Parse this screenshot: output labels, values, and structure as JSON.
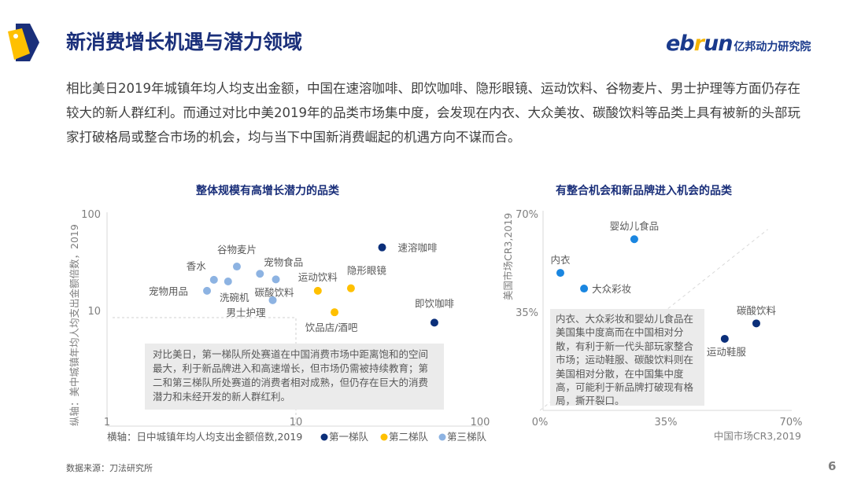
{
  "header": {
    "title": "新消费增长机遇与潜力领域",
    "logo_latin": "ebrun",
    "logo_cn": "亿邦动力研究院"
  },
  "intro": "相比美日2019年城镇年均人均支出金额，中国在速溶咖啡、即饮咖啡、隐形眼镜、运动饮料、谷物麦片、男士护理等方面仍存在较大的新人群红利。而通过对比中美2019年的品类市场集中度，会发现在内衣、大众美妆、碳酸饮料等品类上具有被新的头部玩家打破格局或整合市场的机会，均与当下中国新消费崛起的机遇方向不谋而合。",
  "footer": {
    "source": "数据来源：刀法研究所",
    "page": "6"
  },
  "colors": {
    "tier1": "#0b2f7a",
    "tier2": "#ffc000",
    "tier3": "#8db3e2",
    "c2light": "#1a86e0",
    "c2dark": "#0b2f7a"
  },
  "chart_data": [
    {
      "type": "scatter",
      "title": "整体规模有高增长潜力的品类",
      "xlabel": "横轴：日中城镇年均人均支出金额倍数,2019",
      "ylabel": "纵轴：美中城镇年均人均支出金额倍数，2019",
      "xscale": "log",
      "yscale": "log",
      "xlim": [
        1,
        100
      ],
      "ylim": [
        1,
        100
      ],
      "xticks": [
        "1",
        "10",
        "100"
      ],
      "yticks": [
        "100",
        "10"
      ],
      "legend": [
        "第一梯队",
        "第二梯队",
        "第三梯队"
      ],
      "legend_placement": "bottom",
      "points": [
        {
          "label": "速溶咖啡",
          "x": 29,
          "y": 45,
          "tier": 1
        },
        {
          "label": "即饮咖啡",
          "x": 55,
          "y": 7.5,
          "tier": 1
        },
        {
          "label": "运动饮料",
          "x": 13.2,
          "y": 16,
          "tier": 2
        },
        {
          "label": "隐形眼镜",
          "x": 19.8,
          "y": 17,
          "tier": 2
        },
        {
          "label": "饮品店/酒吧",
          "x": 16.2,
          "y": 9.6,
          "tier": 2
        },
        {
          "label": "谷物麦片",
          "x": 4.9,
          "y": 28.5,
          "tier": 3
        },
        {
          "label": "香水",
          "x": 3.7,
          "y": 20.8,
          "tier": 3
        },
        {
          "label": "洗碗机",
          "x": 4.4,
          "y": 20,
          "tier": 3
        },
        {
          "label": "宠物食品",
          "x": 6.5,
          "y": 24,
          "tier": 3
        },
        {
          "label": "碳酸饮料",
          "x": 7.9,
          "y": 21,
          "tier": 3
        },
        {
          "label": "宠物用品",
          "x": 3.4,
          "y": 16,
          "tier": 3
        },
        {
          "label": "男士护理",
          "x": 7.6,
          "y": 12.8,
          "tier": 3
        }
      ],
      "annotation": "对比美日，第一梯队所处赛道在中国消费市场中距离饱和的空间最大，利于新品牌进入和高速增长，但市场仍需被持续教育；第二和第三梯队所处赛道的消费者相对成熟，但仍存在巨大的消费潜力和未经开发的新人群红利。"
    },
    {
      "type": "scatter",
      "title": "有整合机会和新品牌进入机会的品类",
      "xlabel": "中国市场CR3,2019",
      "ylabel": "美国市场CR3,2019",
      "xlim": [
        0,
        70
      ],
      "ylim": [
        0,
        70
      ],
      "xticks": [
        "0%",
        "35%",
        "70%"
      ],
      "yticks": [
        "70%",
        "35%"
      ],
      "points": [
        {
          "label": "婴幼儿食品",
          "x": 26.3,
          "y": 61,
          "group": "light"
        },
        {
          "label": "内衣",
          "x": 5.7,
          "y": 49,
          "group": "light"
        },
        {
          "label": "大众彩妆",
          "x": 12.3,
          "y": 43.4,
          "group": "light"
        },
        {
          "label": "碳酸饮料",
          "x": 60.3,
          "y": 31,
          "group": "dark"
        },
        {
          "label": "运动鞋服",
          "x": 51.5,
          "y": 25.5,
          "group": "dark"
        }
      ],
      "reference_line": "y=x",
      "annotation": "内衣、大众彩妆和婴幼儿食品在美国集中度高而在中国相对分散，有利于新一代头部玩家整合市场；运动鞋服、碳酸饮料则在美国相对分散，在中国集中度高，可能利于新品牌打破现有格局，撕开裂口。"
    }
  ]
}
